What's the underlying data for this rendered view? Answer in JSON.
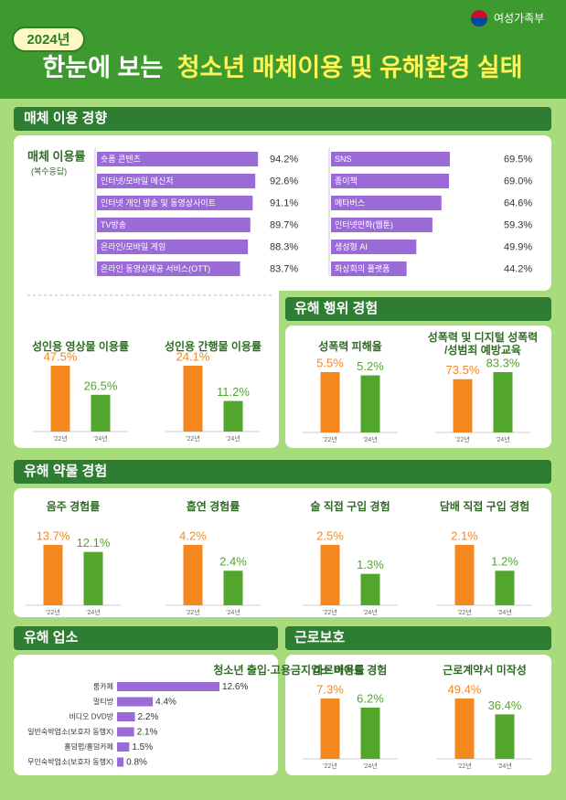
{
  "header": {
    "badge": "2024년",
    "title_lead": "한눈에 보는",
    "title_main": "청소년 매체이용 및 유해환경 실태",
    "ministry": "여성가족부"
  },
  "style": {
    "bar_colors": [
      "#f5871f",
      "#52a62c"
    ],
    "media_bar_color": "#9a6ad6",
    "venue_bar_color": "#9a6ad6"
  },
  "media": {
    "title": "매체 이용 경향",
    "chart_label": "매체 이용률",
    "chart_note": "(복수응답)",
    "categories": [
      "숏폼 콘텐츠",
      "인터넷/모바일 메신저",
      "인터넷 개인 방송 및 동영상사이트",
      "TV방송",
      "온라인/모바일 게임",
      "온라인 동영상제공 서비스(OTT)",
      "SNS",
      "종이책",
      "메타버스",
      "인터넷만화(웹툰)",
      "생성형 AI",
      "화상회의 플랫폼"
    ],
    "values": [
      94.2,
      92.6,
      91.1,
      89.7,
      88.3,
      83.7,
      69.5,
      69.0,
      64.6,
      59.3,
      49.9,
      44.2
    ],
    "value_labels": [
      "94.2%",
      "92.6%",
      "91.1%",
      "89.7%",
      "88.3%",
      "83.7%",
      "69.5%",
      "69.0%",
      "64.6%",
      "59.3%",
      "49.9%",
      "44.2%"
    ],
    "xlim": [
      0,
      100
    ],
    "charts": [
      {
        "title": "성인용 영상물 이용률",
        "categories": [
          "'22년",
          "'24년"
        ],
        "values": [
          47.5,
          26.5
        ],
        "value_labels": [
          "47.5%",
          "26.5%"
        ]
      },
      {
        "title": "성인용 간행물 이용률",
        "categories": [
          "'22년",
          "'24년"
        ],
        "values": [
          24.1,
          11.2
        ],
        "value_labels": [
          "24.1%",
          "11.2%"
        ]
      }
    ]
  },
  "harm": {
    "title": "유해 행위 경험",
    "charts": [
      {
        "title": "성폭력 피해율",
        "categories": [
          "'22년",
          "'24년"
        ],
        "values": [
          5.5,
          5.2
        ],
        "value_labels": [
          "5.5%",
          "5.2%"
        ]
      },
      {
        "title": [
          "성폭력 및 디지털 성폭력",
          "/성범죄 예방교육"
        ],
        "categories": [
          "'22년",
          "'24년"
        ],
        "values": [
          73.5,
          83.3
        ],
        "value_labels": [
          "73.5%",
          "83.3%"
        ]
      }
    ]
  },
  "drug": {
    "title": "유해 약물 경험",
    "charts": [
      {
        "title": "음주 경험률",
        "categories": [
          "'22년",
          "'24년"
        ],
        "values": [
          13.7,
          12.1
        ],
        "value_labels": [
          "13.7%",
          "12.1%"
        ]
      },
      {
        "title": "흡연 경험률",
        "categories": [
          "'22년",
          "'24년"
        ],
        "values": [
          4.2,
          2.4
        ],
        "value_labels": [
          "4.2%",
          "2.4%"
        ]
      },
      {
        "title": "술 직접 구입 경험",
        "categories": [
          "'22년",
          "'24년"
        ],
        "values": [
          2.5,
          1.3
        ],
        "value_labels": [
          "2.5%",
          "1.3%"
        ]
      },
      {
        "title": "담배 직접 구입 경험",
        "categories": [
          "'22년",
          "'24년"
        ],
        "values": [
          2.1,
          1.2
        ],
        "value_labels": [
          "2.1%",
          "1.2%"
        ]
      }
    ]
  },
  "venue": {
    "title": "유해 업소",
    "subtitle": "청소년 출입·고용금지업소 이용률",
    "categories": [
      "룸카페",
      "멀티방",
      "비디오 DVD방",
      "일반숙박업소(보호자 동행X)",
      "홀덤펍/홀덤카페",
      "무인숙박업소(보호자 동행X)"
    ],
    "values": [
      12.6,
      4.4,
      2.2,
      2.1,
      1.5,
      0.8
    ],
    "value_labels": [
      "12.6%",
      "4.4%",
      "2.2%",
      "2.1%",
      "1.5%",
      "0.8%"
    ]
  },
  "labor": {
    "title": "근로보호",
    "charts": [
      {
        "title": "아르바이트 경험",
        "categories": [
          "'22년",
          "'24년"
        ],
        "values": [
          7.3,
          6.2
        ],
        "value_labels": [
          "7.3%",
          "6.2%"
        ]
      },
      {
        "title": "근로계약서 미작성",
        "categories": [
          "'22년",
          "'24년"
        ],
        "values": [
          49.4,
          36.4
        ],
        "value_labels": [
          "49.4%",
          "36.4%"
        ]
      }
    ]
  }
}
